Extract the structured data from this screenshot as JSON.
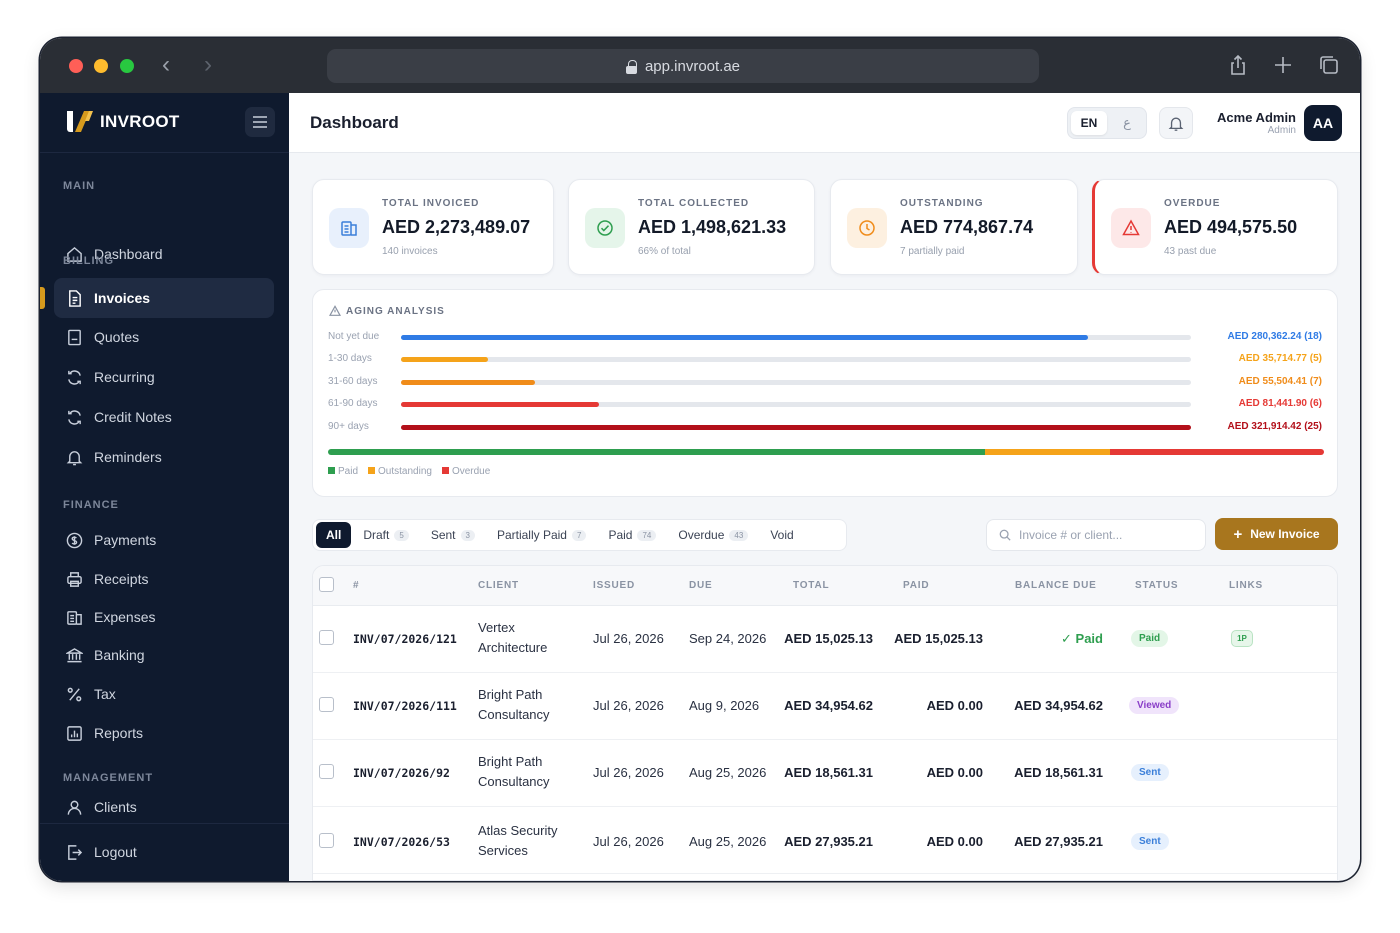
{
  "browser": {
    "url": "app.invroot.ae"
  },
  "brand": {
    "name": "INVROOT"
  },
  "sidebar": {
    "sections": {
      "main": "MAIN",
      "billing": "BILLING",
      "finance": "FINANCE",
      "management": "MANAGEMENT"
    },
    "items": {
      "dashboard": "Dashboard",
      "invoices": "Invoices",
      "quotes": "Quotes",
      "recurring": "Recurring",
      "credit_notes": "Credit Notes",
      "reminders": "Reminders",
      "payments": "Payments",
      "receipts": "Receipts",
      "expenses": "Expenses",
      "banking": "Banking",
      "tax": "Tax",
      "reports": "Reports",
      "clients": "Clients",
      "logout": "Logout"
    },
    "active": "Invoices"
  },
  "header": {
    "title": "Dashboard",
    "lang_en": "EN",
    "lang_alt": "ع",
    "user_name": "Acme Admin",
    "user_role": "Admin",
    "avatar_initials": "AA"
  },
  "stats": [
    {
      "label": "TOTAL INVOICED",
      "value": "AED 2,273,489.07",
      "sub": "140 invoices",
      "icon": "invoices-icon",
      "color": "#3b7fd9"
    },
    {
      "label": "TOTAL COLLECTED",
      "value": "AED 1,498,621.33",
      "sub": "66% of total",
      "icon": "check-circle-icon",
      "color": "#2e9e4f"
    },
    {
      "label": "OUTSTANDING",
      "value": "AED 774,867.74",
      "sub": "7 partially paid",
      "icon": "clock-icon",
      "color": "#f08c1a"
    },
    {
      "label": "OVERDUE",
      "value": "AED 494,575.50",
      "sub": "43 past due",
      "icon": "warning-icon",
      "color": "#e53935"
    }
  ],
  "aging": {
    "title": "AGING ANALYSIS",
    "buckets": [
      {
        "label": "Not yet due",
        "amount": "AED 280,362.24 (18)",
        "fraction": 0.87,
        "color": "#2f7be5"
      },
      {
        "label": "1-30 days",
        "amount": "AED 35,714.77 (5)",
        "fraction": 0.11,
        "color": "#f5a31a"
      },
      {
        "label": "31-60 days",
        "amount": "AED 55,504.41 (7)",
        "fraction": 0.17,
        "color": "#f08c1a"
      },
      {
        "label": "61-90 days",
        "amount": "AED 81,441.90 (6)",
        "fraction": 0.25,
        "color": "#e53935"
      },
      {
        "label": "90+ days",
        "amount": "AED 321,914.42 (25)",
        "fraction": 1.0,
        "color": "#b3101a"
      }
    ],
    "composition": [
      {
        "label": "Paid",
        "fraction": 0.66,
        "color": "#2e9e4f"
      },
      {
        "label": "Outstanding",
        "fraction": 0.125,
        "color": "#f5a31a"
      },
      {
        "label": "Overdue",
        "fraction": 0.215,
        "color": "#e53935"
      }
    ],
    "legend": [
      "Paid",
      "Outstanding",
      "Overdue"
    ]
  },
  "filters": {
    "tabs": [
      {
        "label": "All",
        "count": ""
      },
      {
        "label": "Draft",
        "count": "5"
      },
      {
        "label": "Sent",
        "count": "3"
      },
      {
        "label": "Partially Paid",
        "count": "7"
      },
      {
        "label": "Paid",
        "count": "74"
      },
      {
        "label": "Overdue",
        "count": "43"
      },
      {
        "label": "Void",
        "count": ""
      }
    ],
    "active": "All",
    "search_placeholder": "Invoice # or client...",
    "new_button": "New Invoice"
  },
  "table": {
    "columns": [
      "#",
      "CLIENT",
      "ISSUED",
      "DUE",
      "TOTAL",
      "PAID",
      "BALANCE DUE",
      "STATUS",
      "LINKS"
    ],
    "rows": [
      {
        "number": "INV/07/2026/121",
        "client_l1": "Vertex",
        "client_l2": "Architecture",
        "issued": "Jul 26, 2026",
        "due": "Sep 24, 2026",
        "total": "AED 15,025.13",
        "paid": "AED 15,025.13",
        "balance": "✓ Paid",
        "status": "Paid",
        "link": "1P"
      },
      {
        "number": "INV/07/2026/111",
        "client_l1": "Bright Path",
        "client_l2": "Consultancy",
        "issued": "Jul 26, 2026",
        "due": "Aug 9, 2026",
        "total": "AED 34,954.62",
        "paid": "AED 0.00",
        "balance": "AED 34,954.62",
        "status": "Viewed",
        "link": ""
      },
      {
        "number": "INV/07/2026/92",
        "client_l1": "Bright Path",
        "client_l2": "Consultancy",
        "issued": "Jul 26, 2026",
        "due": "Aug 25, 2026",
        "total": "AED 18,561.31",
        "paid": "AED 0.00",
        "balance": "AED 18,561.31",
        "status": "Sent",
        "link": ""
      },
      {
        "number": "INV/07/2026/53",
        "client_l1": "Atlas Security",
        "client_l2": "Services",
        "issued": "Jul 26, 2026",
        "due": "Aug 25, 2026",
        "total": "AED 27,935.21",
        "paid": "AED 0.00",
        "balance": "AED 27,935.21",
        "status": "Sent",
        "link": ""
      }
    ]
  }
}
